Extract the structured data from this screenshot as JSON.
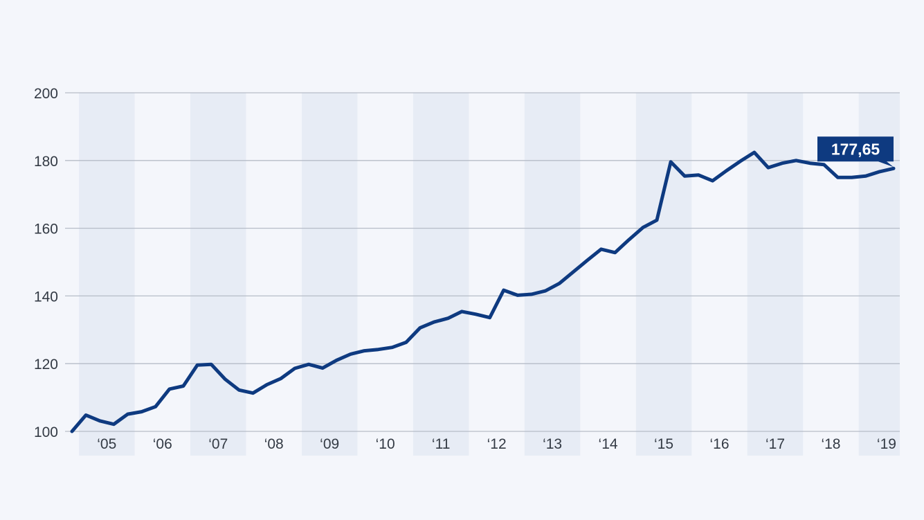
{
  "chart_data": {
    "type": "line",
    "title": "",
    "xlabel": "",
    "ylabel": "",
    "ylim": [
      100,
      200
    ],
    "yticks": [
      "100",
      "120",
      "140",
      "160",
      "180",
      "200"
    ],
    "year_labels": [
      "‘05",
      "‘06",
      "‘07",
      "‘08",
      "‘09",
      "‘10",
      "‘11",
      "‘12",
      "‘13",
      "‘14",
      "‘15",
      "‘16",
      "‘17",
      "‘18",
      "‘19"
    ],
    "grid": true,
    "alternating_year_bands": true,
    "x_start": 2004.875,
    "x_end": 2019.625,
    "series": [
      {
        "color": "#0e3a80",
        "x": [
          2004.875,
          2005.125,
          2005.375,
          2005.625,
          2005.875,
          2006.125,
          2006.375,
          2006.625,
          2006.875,
          2007.125,
          2007.375,
          2007.625,
          2007.875,
          2008.125,
          2008.375,
          2008.625,
          2008.875,
          2009.125,
          2009.375,
          2009.625,
          2009.875,
          2010.125,
          2010.375,
          2010.625,
          2010.875,
          2011.125,
          2011.375,
          2011.625,
          2011.875,
          2012.125,
          2012.375,
          2012.625,
          2012.875,
          2013.125,
          2013.375,
          2013.625,
          2013.875,
          2014.125,
          2014.375,
          2014.625,
          2014.875,
          2015.125,
          2015.375,
          2015.625,
          2015.875,
          2016.125,
          2016.375,
          2016.625,
          2016.875,
          2017.125,
          2017.375,
          2017.625,
          2017.875,
          2018.125,
          2018.375,
          2018.625,
          2018.875,
          2019.125,
          2019.375,
          2019.625
        ],
        "y": [
          100.0,
          104.8,
          103.1,
          102.1,
          105.1,
          105.8,
          107.3,
          112.5,
          113.4,
          119.6,
          119.8,
          115.4,
          112.2,
          111.3,
          113.8,
          115.6,
          118.6,
          119.8,
          118.7,
          121.0,
          122.8,
          123.8,
          124.2,
          124.8,
          126.3,
          130.6,
          132.3,
          133.4,
          135.4,
          134.6,
          133.6,
          141.7,
          140.2,
          140.5,
          141.5,
          143.7,
          147.1,
          150.5,
          153.8,
          152.8,
          156.6,
          160.2,
          162.4,
          179.6,
          175.4,
          175.7,
          174.0,
          177.0,
          179.8,
          182.4,
          177.9,
          179.2,
          180.0,
          179.2,
          178.8,
          175.0,
          175.0,
          175.4,
          176.7,
          177.65
        ]
      }
    ],
    "last_value_label": "177,65"
  }
}
